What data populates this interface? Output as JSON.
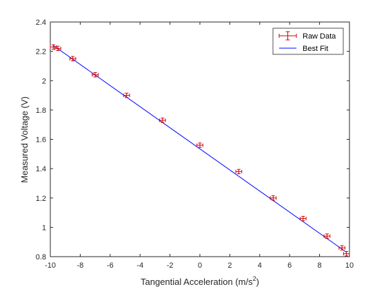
{
  "chart_data": {
    "type": "scatter",
    "xlabel": "Tangential Acceleration (m/s",
    "xlabel_superscript": "2",
    "xlabel_suffix": ")",
    "ylabel": "Measured Voltage (V)",
    "xlim": [
      -10,
      10
    ],
    "ylim": [
      0.8,
      2.4
    ],
    "x_ticks": [
      "-10",
      "-8",
      "-6",
      "-4",
      "-2",
      "0",
      "2",
      "4",
      "6",
      "8",
      "10"
    ],
    "y_ticks": [
      "0.8",
      "1",
      "1.2",
      "1.4",
      "1.6",
      "1.8",
      "2",
      "2.2",
      "2.4"
    ],
    "x_tick_values": [
      -10,
      -8,
      -6,
      -4,
      -2,
      0,
      2,
      4,
      6,
      8,
      10
    ],
    "y_tick_values": [
      0.8,
      1.0,
      1.2,
      1.4,
      1.6,
      1.8,
      2.0,
      2.2,
      2.4
    ],
    "grid": false,
    "legend_position": "top-right",
    "series": [
      {
        "name": "Raw Data",
        "kind": "errorbar",
        "color": "#cc0000",
        "x": [
          -9.8,
          -9.5,
          -8.5,
          -7.0,
          -4.9,
          -2.5,
          0.0,
          2.6,
          4.9,
          6.9,
          8.5,
          9.5,
          9.8
        ],
        "y": [
          2.23,
          2.22,
          2.15,
          2.04,
          1.9,
          1.73,
          1.56,
          1.38,
          1.2,
          1.06,
          0.94,
          0.86,
          0.82
        ],
        "x_err": 0.2,
        "y_err": 0.015
      },
      {
        "name": "Best Fit",
        "kind": "line",
        "color": "#0000ff",
        "x": [
          -9.8,
          9.8
        ],
        "y": [
          2.24,
          0.83
        ]
      }
    ]
  }
}
